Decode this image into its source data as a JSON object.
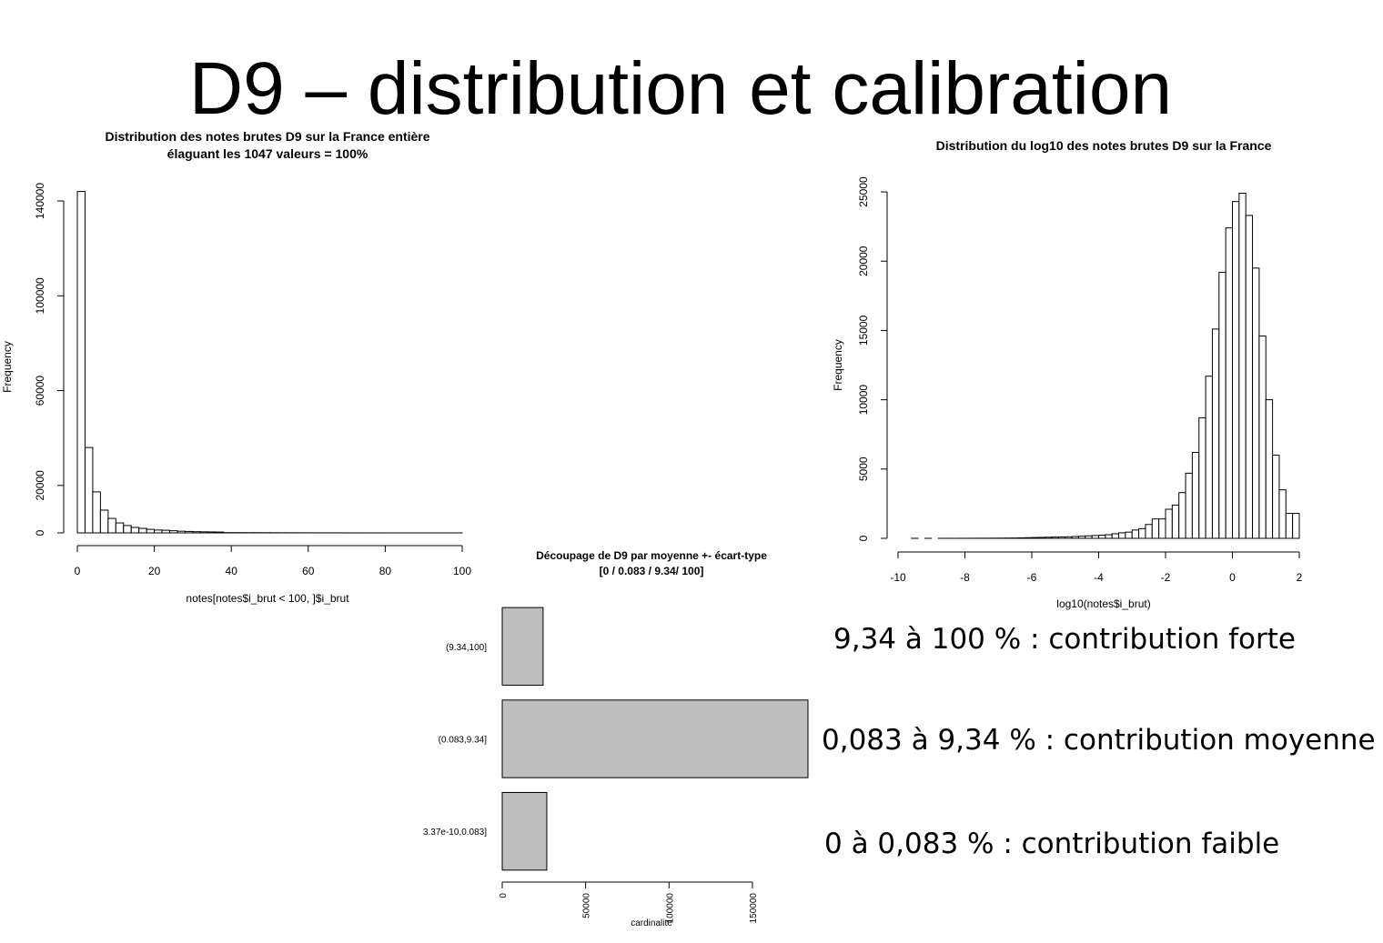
{
  "slide": {
    "title": "D9 – distribution et calibration",
    "annotations": [
      "9,34 à 100 % : contribution forte",
      "0,083 à 9,34 % : contribution moyenne",
      "0 à 0,083 % : contribution faible"
    ]
  },
  "chart_data": [
    {
      "type": "histogram",
      "title": "Distribution des notes brutes D9 sur la France entière",
      "subtitle": "élaguant les 1047 valeurs = 100%",
      "x_label": "notes[notes$i_brut < 100, ]$i_brut",
      "y_label": "Frequency",
      "bins": [
        0,
        2,
        4,
        6,
        8,
        10,
        12,
        14,
        16,
        18,
        20,
        22,
        24,
        26,
        28,
        30,
        32,
        34,
        36,
        38,
        40,
        42,
        44,
        46,
        48,
        50,
        52,
        54,
        56,
        58,
        60,
        62,
        64,
        66,
        68,
        70,
        72,
        74,
        76,
        78,
        80,
        82,
        84,
        86,
        88,
        90,
        92,
        94,
        96,
        98,
        100
      ],
      "values": [
        144000,
        36000,
        17300,
        9600,
        6100,
        4200,
        3100,
        2300,
        1900,
        1500,
        1200,
        1100,
        900,
        700,
        600,
        500,
        450,
        400,
        350,
        120,
        110,
        100,
        90,
        80,
        70,
        60,
        50,
        45,
        40,
        35,
        30,
        28,
        25,
        22,
        20,
        18,
        16,
        14,
        12,
        10,
        9,
        8,
        7,
        6,
        5,
        4,
        3,
        3,
        2,
        2
      ],
      "color": "#ffffff",
      "xlim": [
        0,
        100
      ],
      "xticks": [
        0,
        20,
        40,
        60,
        80,
        100
      ],
      "ylim": [
        0,
        140000
      ],
      "yticks": [
        0,
        20000,
        60000,
        100000,
        140000
      ]
    },
    {
      "type": "barh",
      "title": "Découpage de D9 par moyenne +- écart-type",
      "subtitle": "[0 / 0.083 / 9.34/ 100]",
      "x_label": "cardinalite",
      "categories": [
        "(9.34,100]",
        "(0.083,9.34]",
        "3.37e-10,0.083]"
      ],
      "values": [
        24500,
        183300,
        26700
      ],
      "color": "#bebebe",
      "xlim": [
        0,
        183300
      ],
      "xticks": [
        0,
        50000,
        100000,
        150000
      ]
    },
    {
      "type": "histogram",
      "title": "Distribution du log10 des notes brutes D9 sur la France",
      "x_label": "log10(notes$i_brut)",
      "y_label": "Frequency",
      "bins": [
        -9.6,
        -9.4,
        -9.2,
        -9,
        -8.8,
        -8.6,
        -8.4,
        -8.2,
        -8,
        -7.8,
        -7.6,
        -7.4,
        -7.2,
        -7,
        -6.8,
        -6.6,
        -6.4,
        -6.2,
        -6,
        -5.8,
        -5.6,
        -5.4,
        -5.2,
        -5,
        -4.8,
        -4.6,
        -4.4,
        -4.2,
        -4,
        -3.8,
        -3.6,
        -3.4,
        -3.2,
        -3,
        -2.8,
        -2.6,
        -2.4,
        -2.2,
        -2,
        -1.8,
        -1.6,
        -1.4,
        -1.2,
        -1,
        -0.8,
        -0.6,
        -0.4,
        -0.2,
        0,
        0.2,
        0.4,
        0.6,
        0.8,
        1,
        1.2,
        1.4,
        1.6,
        1.8,
        2
      ],
      "values": [
        2,
        0,
        1,
        0,
        2,
        3,
        1,
        4,
        5,
        6,
        8,
        10,
        12,
        15,
        20,
        25,
        35,
        50,
        60,
        70,
        80,
        90,
        100,
        110,
        130,
        150,
        180,
        200,
        230,
        260,
        330,
        400,
        450,
        600,
        700,
        1000,
        1400,
        1400,
        2100,
        2400,
        3300,
        4700,
        6200,
        8700,
        11700,
        15100,
        19200,
        22400,
        24300,
        24900,
        23300,
        19500,
        14600,
        10000,
        6000,
        3500,
        1800,
        1800
      ],
      "color": "#ffffff",
      "xlim": [
        -10,
        2
      ],
      "xticks": [
        -10,
        -8,
        -6,
        -4,
        -2,
        0,
        2
      ],
      "ylim": [
        0,
        25000
      ],
      "yticks": [
        0,
        5000,
        10000,
        15000,
        20000,
        25000
      ]
    }
  ]
}
